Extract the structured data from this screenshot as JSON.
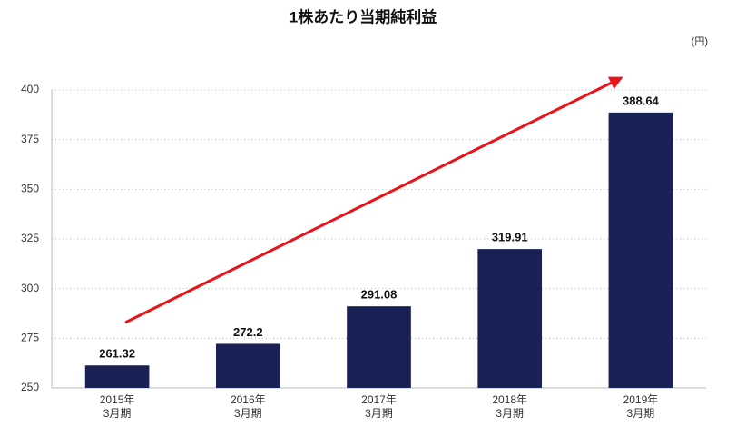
{
  "chart_data": {
    "type": "bar",
    "title": "1株あたり当期純利益",
    "unit_label": "(円)",
    "categories": [
      [
        "2015年",
        "3月期"
      ],
      [
        "2016年",
        "3月期"
      ],
      [
        "2017年",
        "3月期"
      ],
      [
        "2018年",
        "3月期"
      ],
      [
        "2019年",
        "3月期"
      ]
    ],
    "values": [
      261.32,
      272.2,
      291.08,
      319.91,
      388.64
    ],
    "color": "#1a2155",
    "ylim": [
      250,
      400
    ],
    "yticks": [
      250,
      275,
      300,
      325,
      350,
      375,
      400
    ],
    "grid": true
  }
}
